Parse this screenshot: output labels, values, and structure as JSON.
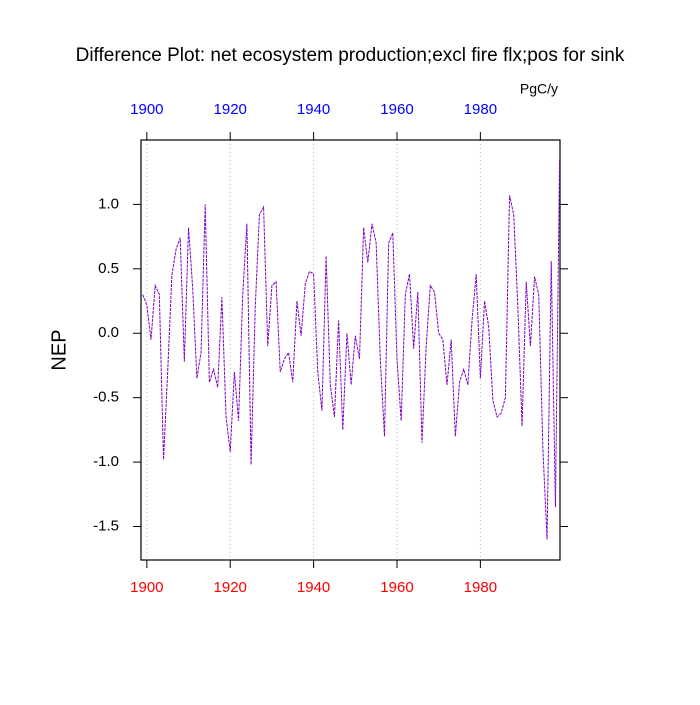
{
  "chart_data": {
    "type": "line",
    "title": "Difference Plot: net ecosystem production;excl fire flx;pos for sink",
    "units": "PgC/y",
    "ylabel": "NEP",
    "x": [
      1899,
      1900,
      1901,
      1902,
      1903,
      1904,
      1905,
      1906,
      1907,
      1908,
      1909,
      1910,
      1911,
      1912,
      1913,
      1914,
      1915,
      1916,
      1917,
      1918,
      1919,
      1920,
      1921,
      1922,
      1923,
      1924,
      1925,
      1926,
      1927,
      1928,
      1929,
      1930,
      1931,
      1932,
      1933,
      1934,
      1935,
      1936,
      1937,
      1938,
      1939,
      1940,
      1941,
      1942,
      1943,
      1944,
      1945,
      1946,
      1947,
      1948,
      1949,
      1950,
      1951,
      1952,
      1953,
      1954,
      1955,
      1956,
      1957,
      1958,
      1959,
      1960,
      1961,
      1962,
      1963,
      1964,
      1965,
      1966,
      1967,
      1968,
      1969,
      1970,
      1971,
      1972,
      1973,
      1974,
      1975,
      1976,
      1977,
      1978,
      1979,
      1980,
      1981,
      1982,
      1983,
      1984,
      1985,
      1986,
      1987,
      1988,
      1989,
      1990,
      1991,
      1992,
      1993,
      1994,
      1995,
      1996,
      1997,
      1998,
      1999
    ],
    "series": [
      {
        "color": "#8000c0",
        "values": [
          0.3,
          0.22,
          -0.05,
          0.37,
          0.3,
          -0.98,
          -0.3,
          0.45,
          0.65,
          0.74,
          -0.22,
          0.82,
          0.35,
          -0.35,
          -0.15,
          1.0,
          -0.38,
          -0.28,
          -0.42,
          0.28,
          -0.65,
          -0.92,
          -0.3,
          -0.68,
          0.3,
          0.85,
          -1.02,
          0.2,
          0.92,
          0.98,
          -0.1,
          0.37,
          0.4,
          -0.3,
          -0.2,
          -0.15,
          -0.38,
          0.25,
          -0.02,
          0.38,
          0.48,
          0.46,
          -0.3,
          -0.6,
          0.6,
          -0.4,
          -0.65,
          0.1,
          -0.75,
          0.0,
          -0.4,
          -0.02,
          -0.2,
          0.82,
          0.55,
          0.85,
          0.7,
          -0.2,
          -0.8,
          0.7,
          0.78,
          -0.2,
          -0.68,
          0.3,
          0.46,
          -0.12,
          0.32,
          -0.85,
          -0.1,
          0.37,
          0.32,
          0.0,
          -0.05,
          -0.4,
          -0.05,
          -0.8,
          -0.38,
          -0.28,
          -0.4,
          0.1,
          0.46,
          -0.35,
          0.25,
          0.05,
          -0.52,
          -0.65,
          -0.62,
          -0.5,
          1.07,
          0.92,
          0.2,
          -0.72,
          0.4,
          -0.1,
          0.44,
          0.3,
          -0.9,
          -1.6,
          0.56,
          -1.35,
          1.35
        ]
      }
    ],
    "xlim": [
      1898.6,
      1999.1
    ],
    "ylim": [
      -1.76,
      1.5
    ],
    "xticks": [
      1900,
      1920,
      1940,
      1960,
      1980
    ],
    "yticks": [
      {
        "value": 1.0,
        "label": "1.0"
      },
      0.5,
      {
        "value": 0.0,
        "label": "0.0"
      },
      -0.5,
      {
        "value": -1.0,
        "label": "-1.0"
      },
      -1.5
    ],
    "grid": true,
    "top_tick_color": "#0000ff",
    "bottom_tick_color": "#ff0000"
  }
}
